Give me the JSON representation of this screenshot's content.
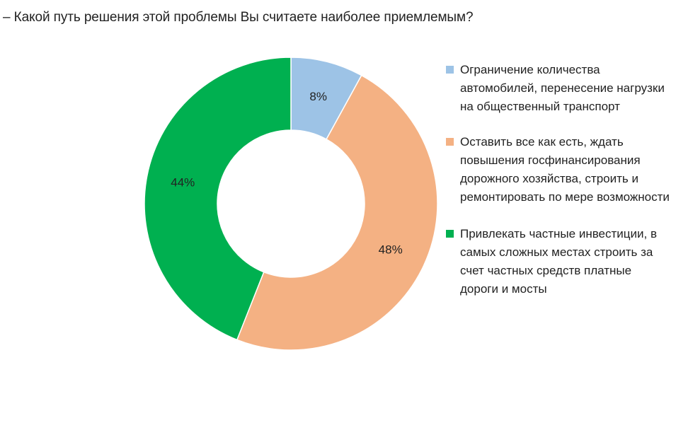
{
  "chart_data": {
    "type": "pie",
    "donut": true,
    "title": "– Какой путь решения этой проблемы Вы считаете наиболее приемлемым?",
    "legend_position": "right",
    "slices": [
      {
        "label": "Ограничение количества автомобилей, перенесение нагрузки на общественный транспорт",
        "value": 8,
        "value_label": "8%",
        "color": "#9dc3e6"
      },
      {
        "label": "Оставить все как есть, ждать повышения госфинансирования дорожного хозяйства, строить и ремонтировать по мере возможности",
        "value": 48,
        "value_label": "48%",
        "color": "#f4b183"
      },
      {
        "label": "Привлекать частные инвестиции, в самых сложных местах строить за счет частных средств платные дороги и мосты",
        "value": 44,
        "value_label": "44%",
        "color": "#00b050"
      }
    ]
  }
}
